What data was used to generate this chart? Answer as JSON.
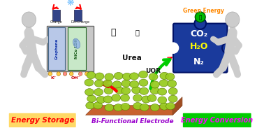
{
  "bg_color": "#ffffff",
  "energy_storage_label": "Energy Storage",
  "energy_storage_bg": "#FFD966",
  "energy_storage_text_color": "#FF0000",
  "energy_conversion_label": "Energy Conversion",
  "energy_conversion_bg": "#00CC00",
  "energy_conversion_text_color": "#FF00FF",
  "bifunctional_label": "Bi-Functional Electrode",
  "bifunctional_text_color": "#9900CC",
  "urea_label": "Urea",
  "uor_label": "UOR",
  "green_energy_label": "Green Energy",
  "green_energy_color": "#FF8800",
  "co2_label": "CO₂",
  "h2o_label": "H₂O",
  "n2_label": "N₂",
  "graphene_label": "Graphene",
  "nico_ldh_label": "NiCo LDH",
  "charge_label": "Charge",
  "discharge_label": "Dis-Charge",
  "kplus_label": "K⁺",
  "oh_label": "OH⁻",
  "puzzle_color": "#1a3a9c",
  "electrode_base_color": "#c8622e",
  "electrode_grass_color": "#99cc22",
  "figure_color": "#cccccc",
  "figure_edge": "#aaaaaa"
}
